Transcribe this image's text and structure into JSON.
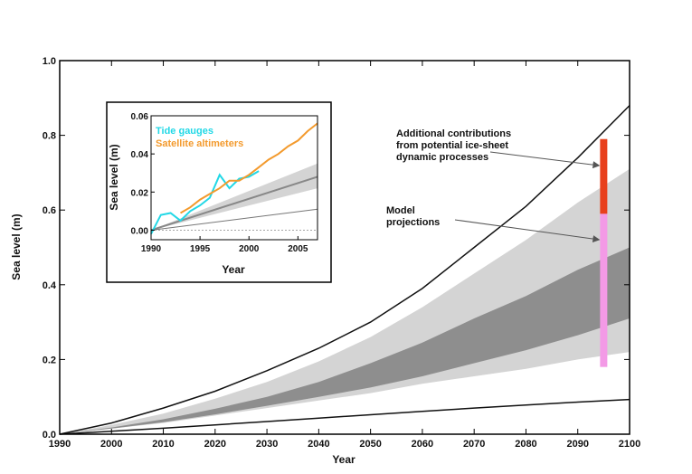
{
  "colors": {
    "band_light": "#d4d4d4",
    "band_dark": "#8e8e8e",
    "ice_bar": "#e8401c",
    "model_bar": "#f39ae6",
    "tide": "#22d8e6",
    "satellite": "#f39a2d",
    "curve": "#111111"
  },
  "chart_data": {
    "main": {
      "type": "area",
      "xlabel": "Year",
      "ylabel": "Sea level (m)",
      "xlim": [
        1990,
        2100
      ],
      "ylim": [
        0,
        1.0
      ],
      "x_ticks": [
        "1990",
        "2000",
        "2010",
        "2020",
        "2030",
        "2040",
        "2050",
        "2060",
        "2070",
        "2080",
        "2090",
        "2100"
      ],
      "y_ticks": [
        "0.0",
        "0.2",
        "0.4",
        "0.6",
        "0.8",
        "1.0"
      ],
      "x": [
        1990,
        2000,
        2010,
        2020,
        2030,
        2040,
        2050,
        2060,
        2070,
        2080,
        2090,
        2100
      ],
      "upper_envelope": [
        0.0,
        0.03,
        0.07,
        0.115,
        0.17,
        0.23,
        0.3,
        0.39,
        0.5,
        0.61,
        0.74,
        0.88
      ],
      "lower_envelope": [
        0.0,
        0.008,
        0.016,
        0.025,
        0.034,
        0.043,
        0.052,
        0.061,
        0.07,
        0.078,
        0.086,
        0.093
      ],
      "outer_band_upper": [
        0.0,
        0.025,
        0.055,
        0.095,
        0.14,
        0.195,
        0.26,
        0.34,
        0.43,
        0.52,
        0.62,
        0.71
      ],
      "outer_band_lower": [
        0.0,
        0.015,
        0.03,
        0.05,
        0.07,
        0.09,
        0.11,
        0.135,
        0.155,
        0.175,
        0.2,
        0.22
      ],
      "inner_band_upper": [
        0.0,
        0.018,
        0.04,
        0.068,
        0.1,
        0.14,
        0.19,
        0.245,
        0.31,
        0.37,
        0.44,
        0.5
      ],
      "inner_band_lower": [
        0.0,
        0.015,
        0.032,
        0.053,
        0.076,
        0.1,
        0.125,
        0.155,
        0.19,
        0.225,
        0.265,
        0.31
      ],
      "model_projection_range": {
        "x": 2095,
        "low": 0.18,
        "high": 0.59
      },
      "ice_sheet_range": {
        "x": 2095,
        "low": 0.59,
        "high": 0.79
      }
    },
    "inset": {
      "type": "line",
      "xlabel": "Year",
      "ylabel": "Sea level (m)",
      "xlim": [
        1990,
        2007
      ],
      "ylim": [
        -0.005,
        0.06
      ],
      "x_ticks": [
        "1990",
        "1995",
        "2000",
        "2005"
      ],
      "y_ticks": [
        "0.00",
        "0.02",
        "0.04",
        "0.06"
      ],
      "series": [
        {
          "name": "Tide gauges",
          "x": [
            1990,
            1991,
            1992,
            1993,
            1994,
            1995,
            1996,
            1997,
            1998,
            1999,
            2000,
            2001
          ],
          "values": [
            -0.002,
            0.008,
            0.009,
            0.005,
            0.01,
            0.013,
            0.017,
            0.029,
            0.022,
            0.027,
            0.028,
            0.031
          ]
        },
        {
          "name": "Satellite altimeters",
          "x": [
            1993,
            1994,
            1995,
            1996,
            1997,
            1998,
            1999,
            2000,
            2001,
            2002,
            2003,
            2004,
            2005,
            2006,
            2007
          ],
          "values": [
            0.009,
            0.012,
            0.016,
            0.019,
            0.022,
            0.026,
            0.026,
            0.029,
            0.033,
            0.037,
            0.04,
            0.044,
            0.047,
            0.052,
            0.056
          ]
        }
      ],
      "projection_band": {
        "x": [
          1990,
          2007
        ],
        "upper": [
          0.0,
          0.035
        ],
        "lower": [
          0.0,
          0.022
        ]
      },
      "projection_center": {
        "x": [
          1990,
          2007
        ],
        "values": [
          0.0,
          0.028
        ]
      },
      "projection_low_line": {
        "x": [
          1990,
          2007
        ],
        "values": [
          0.0,
          0.011
        ]
      }
    }
  },
  "annotations": {
    "ice_sheet_line1": "Additional contributions",
    "ice_sheet_line2": "from potential ice-sheet",
    "ice_sheet_line3": "dynamic processes",
    "model_line1": "Model",
    "model_line2": "projections"
  }
}
